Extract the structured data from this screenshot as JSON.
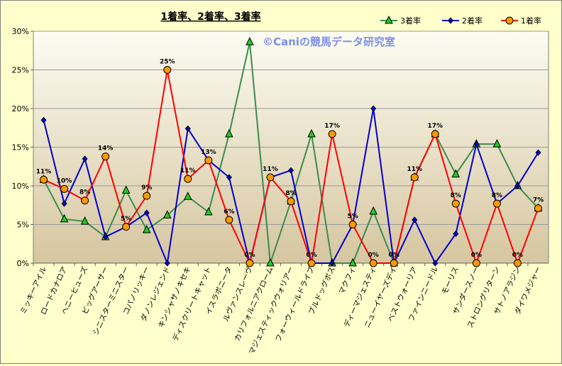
{
  "chart_data": {
    "type": "line",
    "title": "1着率、2着率、3着率",
    "watermark": "©Caniの競馬データ研究室",
    "categories": [
      "ミッキーアイル",
      "ロードカナロア",
      "ヘニーヒューズ",
      "ビッグアーサー",
      "シニスターミニスター",
      "コパノリッキー",
      "ダノンレジェンド",
      "キンシャサノキセキ",
      "ディスクリートキャット",
      "イスラボニータ",
      "ルヴァンスレーヴ",
      "カリフォルニアクローム",
      "マジェスティックウォリアー",
      "フォーウィールドライブ",
      "ブルドッグボス",
      "マクフィ",
      "ディーマジェスティ",
      "ニューイヤーズデイ",
      "ベストウォーリア",
      "ファインニードル",
      "モーリス",
      "サンダースノー",
      "ストロングリターン",
      "サトノアラジン",
      "ダイワメジャー"
    ],
    "ylim": [
      0,
      30
    ],
    "yticks": [
      "0%",
      "5%",
      "10%",
      "15%",
      "20%",
      "25%",
      "30%"
    ],
    "legend_position": "top-right",
    "series": [
      {
        "name": "3着率",
        "color": "#3c8c50",
        "marker": "triangle",
        "marker_color": "#22cc22",
        "values": [
          10.8,
          5.7,
          5.4,
          3.4,
          9.4,
          4.3,
          6.2,
          8.6,
          6.6,
          16.7,
          28.6,
          0,
          8.0,
          16.7,
          0,
          0,
          6.7,
          0,
          11.1,
          16.7,
          11.5,
          15.4,
          15.4,
          10.0,
          7.1
        ]
      },
      {
        "name": "2着率",
        "color": "#0000cc",
        "marker": "diamond",
        "marker_color": "#0000cc",
        "values": [
          18.5,
          7.7,
          13.5,
          3.4,
          4.7,
          6.5,
          0,
          17.4,
          13.3,
          11.1,
          0,
          11.1,
          12.0,
          0,
          0,
          5.0,
          20.0,
          0,
          5.6,
          0,
          3.8,
          15.4,
          7.7,
          10.0,
          14.3
        ]
      },
      {
        "name": "1着率",
        "color": "#ff0000",
        "marker": "circle",
        "marker_color": "#ff9900",
        "values": [
          10.8,
          9.6,
          8.1,
          13.8,
          4.7,
          8.7,
          25.0,
          10.9,
          13.3,
          5.6,
          0,
          11.1,
          8.0,
          0,
          16.7,
          5.0,
          0,
          0,
          11.1,
          16.7,
          7.7,
          0,
          7.7,
          0,
          7.1
        ]
      }
    ],
    "data_labels_series": "1着率",
    "data_labels": [
      "11%",
      "10%",
      "8%",
      "14%",
      "5%",
      "9%",
      "25%",
      "11%",
      "13%",
      "6%",
      "0%",
      "11%",
      "8%",
      "0%",
      "17%",
      "5%",
      "0%",
      "0%",
      "11%",
      "17%",
      "8%",
      "0%",
      "8%",
      "0%",
      "7%"
    ]
  }
}
